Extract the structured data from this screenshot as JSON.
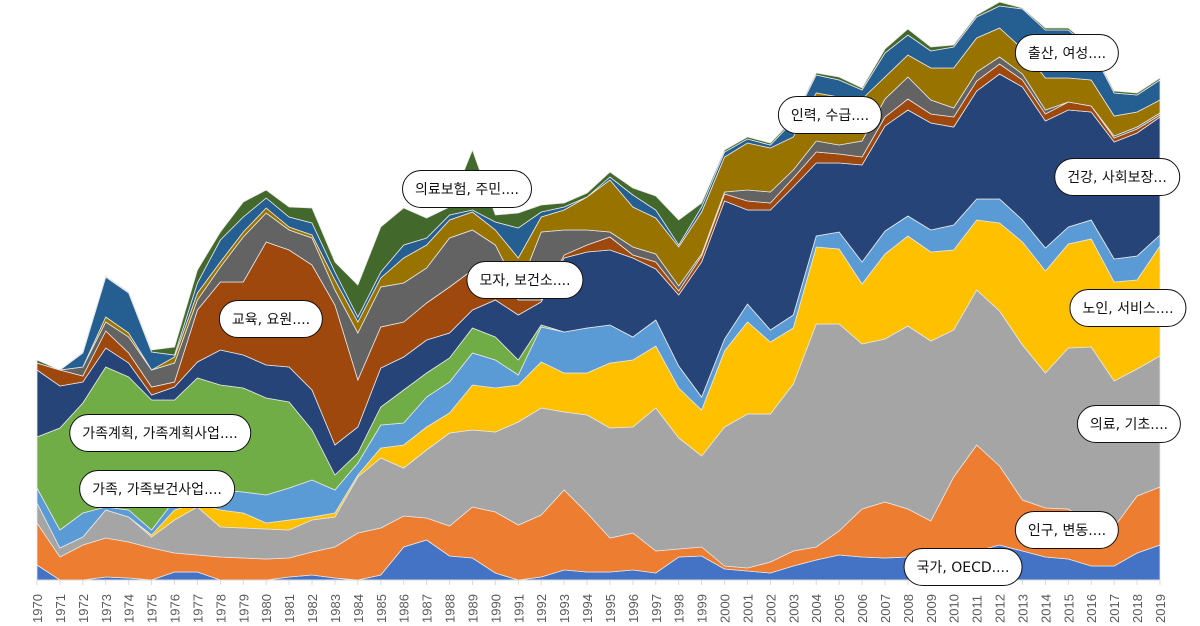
{
  "chart_data": {
    "type": "area",
    "stacked": true,
    "grid": false,
    "legend": "none",
    "categories": [
      "1970",
      "1971",
      "1972",
      "1973",
      "1974",
      "1975",
      "1976",
      "1977",
      "1978",
      "1979",
      "1980",
      "1981",
      "1982",
      "1983",
      "1984",
      "1985",
      "1986",
      "1987",
      "1988",
      "1989",
      "1990",
      "1991",
      "1992",
      "1993",
      "1994",
      "1995",
      "1996",
      "1997",
      "1998",
      "1999",
      "2000",
      "2001",
      "2002",
      "2003",
      "2004",
      "2005",
      "2006",
      "2007",
      "2008",
      "2009",
      "2010",
      "2011",
      "2012",
      "2013",
      "2014",
      "2015",
      "2016",
      "2017",
      "2018",
      "2019"
    ],
    "series": [
      {
        "name": "국가, OECD....",
        "color": "#4472c4",
        "values": [
          15,
          0,
          0,
          3,
          2,
          0,
          8,
          8,
          0,
          0,
          0,
          3,
          5,
          2,
          0,
          5,
          33,
          40,
          24,
          22,
          7,
          0,
          3,
          10,
          8,
          8,
          10,
          7,
          23,
          24,
          11,
          9,
          7,
          14,
          20,
          25,
          23,
          22,
          23,
          23,
          27,
          29,
          35,
          29,
          23,
          21,
          14,
          14,
          27,
          35
        ]
      },
      {
        "name": "인구, 변동....",
        "color": "#ed7d31",
        "values": [
          42,
          23,
          35,
          39,
          36,
          32,
          19,
          17,
          23,
          22,
          21,
          19,
          23,
          31,
          47,
          47,
          31,
          22,
          30,
          51,
          61,
          55,
          62,
          80,
          59,
          34,
          37,
          22,
          8,
          9,
          3,
          3,
          11,
          15,
          13,
          24,
          48,
          56,
          48,
          36,
          76,
          106,
          79,
          51,
          49,
          50,
          41,
          39,
          57,
          58
        ]
      },
      {
        "name": "의료, 기초....",
        "color": "#a5a5a5",
        "values": [
          20,
          9,
          8,
          28,
          25,
          11,
          33,
          48,
          30,
          30,
          30,
          28,
          32,
          30,
          56,
          70,
          48,
          68,
          93,
          77,
          80,
          103,
          107,
          78,
          98,
          110,
          106,
          143,
          111,
          91,
          139,
          154,
          148,
          167,
          223,
          207,
          165,
          163,
          183,
          180,
          147,
          155,
          155,
          155,
          135,
          161,
          178,
          146,
          127,
          131
        ]
      },
      {
        "name": "노인, 서비스....",
        "color": "#ffc000",
        "values": [
          0,
          0,
          0,
          0,
          0,
          2,
          10,
          4,
          17,
          15,
          6,
          10,
          3,
          4,
          2,
          10,
          23,
          23,
          20,
          45,
          44,
          37,
          46,
          39,
          42,
          65,
          67,
          62,
          50,
          46,
          76,
          92,
          72,
          56,
          77,
          75,
          60,
          85,
          90,
          89,
          80,
          70,
          88,
          103,
          102,
          104,
          108,
          99,
          89,
          110
        ]
      },
      {
        "name": "가족, 가족보건사업....",
        "color": "#5b9bd5",
        "values": [
          15,
          18,
          24,
          3,
          7,
          5,
          10,
          11,
          20,
          21,
          28,
          32,
          37,
          23,
          12,
          23,
          22,
          30,
          31,
          32,
          28,
          10,
          35,
          41,
          45,
          38,
          23,
          26,
          22,
          13,
          12,
          18,
          12,
          13,
          11,
          17,
          22,
          23,
          20,
          22,
          25,
          21,
          24,
          22,
          23,
          17,
          19,
          23,
          24,
          11
        ]
      },
      {
        "name": "가족계획, 가족계획사업....",
        "color": "#70ad47",
        "values": [
          51,
          102,
          110,
          140,
          133,
          130,
          100,
          114,
          105,
          104,
          97,
          86,
          50,
          15,
          10,
          18,
          33,
          24,
          24,
          25,
          23,
          15,
          2,
          0,
          0,
          0,
          0,
          0,
          0,
          0,
          0,
          0,
          0,
          0,
          0,
          0,
          0,
          0,
          0,
          0,
          0,
          0,
          0,
          0,
          0,
          0,
          0,
          0,
          0,
          0
        ]
      },
      {
        "name": "건강, 사회보장...",
        "color": "#264478",
        "values": [
          67,
          42,
          21,
          19,
          14,
          5,
          13,
          16,
          35,
          33,
          33,
          35,
          40,
          30,
          26,
          39,
          33,
          33,
          25,
          18,
          37,
          45,
          23,
          74,
          76,
          75,
          79,
          51,
          71,
          135,
          138,
          94,
          120,
          128,
          73,
          69,
          97,
          105,
          106,
          107,
          98,
          108,
          125,
          133,
          127,
          117,
          108,
          117,
          123,
          118
        ]
      },
      {
        "name": "교육, 요원....",
        "color": "#9e480e",
        "values": [
          7,
          16,
          6,
          17,
          10,
          8,
          5,
          52,
          68,
          73,
          123,
          117,
          125,
          140,
          47,
          41,
          35,
          37,
          46,
          40,
          32,
          15,
          2,
          3,
          7,
          13,
          3,
          7,
          4,
          6,
          7,
          9,
          7,
          9,
          11,
          9,
          8,
          9,
          11,
          9,
          10,
          10,
          10,
          7,
          7,
          8,
          6,
          4,
          4,
          2
        ]
      },
      {
        "name": "모자, 보건소....",
        "color": "#636363",
        "values": [
          0,
          0,
          9,
          9,
          16,
          17,
          19,
          10,
          15,
          45,
          29,
          20,
          27,
          15,
          47,
          40,
          39,
          35,
          49,
          40,
          23,
          10,
          68,
          25,
          15,
          5,
          8,
          8,
          5,
          2,
          2,
          11,
          11,
          8,
          11,
          9,
          16,
          18,
          22,
          14,
          9,
          9,
          7,
          6,
          4,
          0,
          0,
          2,
          2,
          2
        ]
      },
      {
        "name": "의료보험, 주민....",
        "color": "#997300",
        "values": [
          0,
          0,
          0,
          5,
          4,
          0,
          6,
          7,
          5,
          5,
          5,
          3,
          3,
          10,
          11,
          9,
          25,
          23,
          18,
          18,
          15,
          32,
          15,
          20,
          33,
          52,
          40,
          36,
          39,
          42,
          35,
          47,
          44,
          33,
          48,
          48,
          42,
          22,
          22,
          32,
          40,
          34,
          29,
          25,
          32,
          24,
          26,
          20,
          15,
          13
        ]
      },
      {
        "name": "인력, 수급....",
        "color": "#255e91",
        "values": [
          0,
          0,
          14,
          40,
          40,
          18,
          2,
          10,
          22,
          15,
          10,
          10,
          12,
          8,
          5,
          6,
          13,
          7,
          5,
          2,
          8,
          30,
          5,
          3,
          0,
          3,
          12,
          8,
          2,
          5,
          5,
          4,
          3,
          16,
          18,
          17,
          9,
          24,
          20,
          17,
          21,
          21,
          22,
          40,
          48,
          48,
          31,
          23,
          17,
          20
        ]
      },
      {
        "name": "출산, 여성....",
        "color": "#43682b",
        "values": [
          3,
          0,
          1,
          1,
          1,
          2,
          8,
          13,
          8,
          15,
          8,
          10,
          15,
          10,
          32,
          45,
          37,
          20,
          8,
          60,
          7,
          15,
          7,
          4,
          4,
          5,
          7,
          14,
          25,
          4,
          2,
          2,
          2,
          2,
          2,
          3,
          2,
          4,
          6,
          4,
          2,
          2,
          4,
          1,
          2,
          2,
          2,
          2,
          2,
          2
        ]
      }
    ]
  }
}
